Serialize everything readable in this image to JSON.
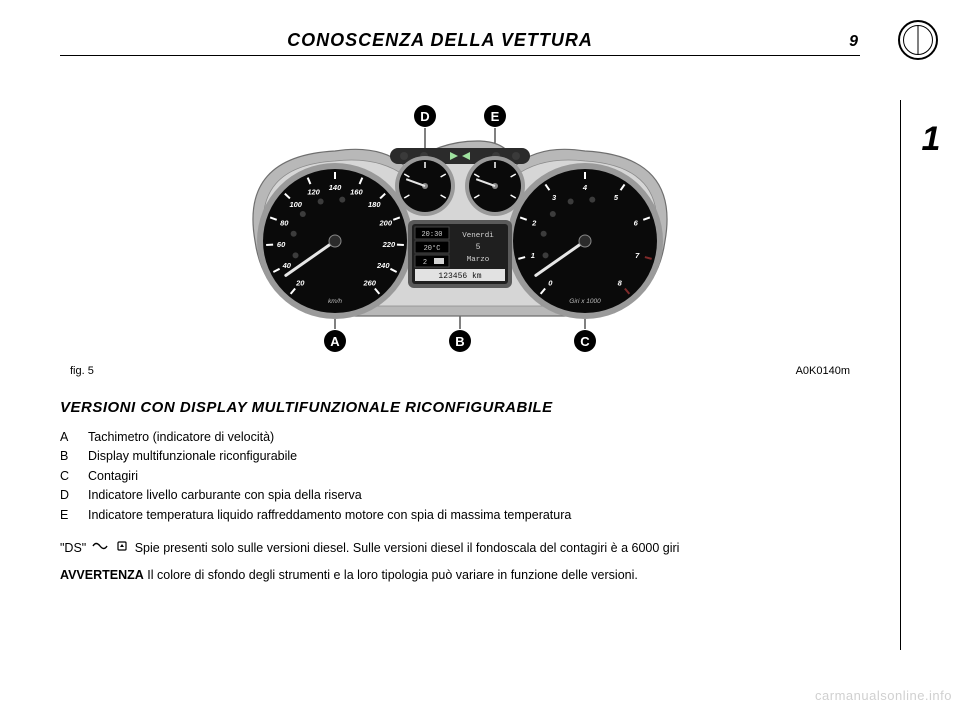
{
  "header": {
    "title": "CONOSCENZA DELLA VETTURA",
    "page_number": "9",
    "chapter_number": "1"
  },
  "figure": {
    "label_left": "fig. 5",
    "label_right": "A0K0140m",
    "callouts": [
      "A",
      "B",
      "C",
      "D",
      "E"
    ],
    "display": {
      "time": "20:30",
      "temp": "20°C",
      "fuel_icon_value": "2",
      "day": "Venerdì",
      "date_num": "5",
      "month": "Marzo",
      "odometer": "123456 km"
    },
    "speedo": {
      "ticks": [
        "20",
        "40",
        "60",
        "80",
        "100",
        "120",
        "140",
        "160",
        "180",
        "200",
        "220",
        "240",
        "260"
      ],
      "unit": "km/h"
    },
    "tacho": {
      "ticks": [
        "0",
        "1",
        "2",
        "3",
        "4",
        "5",
        "6",
        "7",
        "8"
      ],
      "unit": "Giri x 1000"
    },
    "colors": {
      "cluster_body": "#b8b8b8",
      "cluster_inner": "#d6d6d6",
      "dial_face": "#0a0a0a",
      "dial_ring": "#9a9a9a",
      "needle": "#e6e6e6",
      "tick_text": "#ffffff",
      "lcd_bg": "#1f1f1f",
      "lcd_text": "#d2d2d2",
      "redzone": "#7f2a2a",
      "callout_fill": "#000000",
      "callout_text": "#ffffff"
    }
  },
  "section_title": "VERSIONI CON DISPLAY MULTIFUNZIONALE RICONFIGURABILE",
  "legend": {
    "A": "Tachimetro (indicatore di velocità)",
    "B": "Display multifunzionale riconfigurabile",
    "C": "Contagiri",
    "D": "Indicatore livello carburante con spia della riserva",
    "E": "Indicatore temperatura liquido raffreddamento motore con spia di massima temperatura"
  },
  "note_prefix": "\"DS\"",
  "note_text": "Spie presenti solo sulle versioni diesel. Sulle versioni diesel il fondoscala del contagiri è a 6000 giri",
  "warning_label": "AVVERTENZA",
  "warning_text": "Il colore di sfondo degli strumenti e la loro tipologia può variare in funzione delle versioni.",
  "watermark": "carmanualsonline.info"
}
